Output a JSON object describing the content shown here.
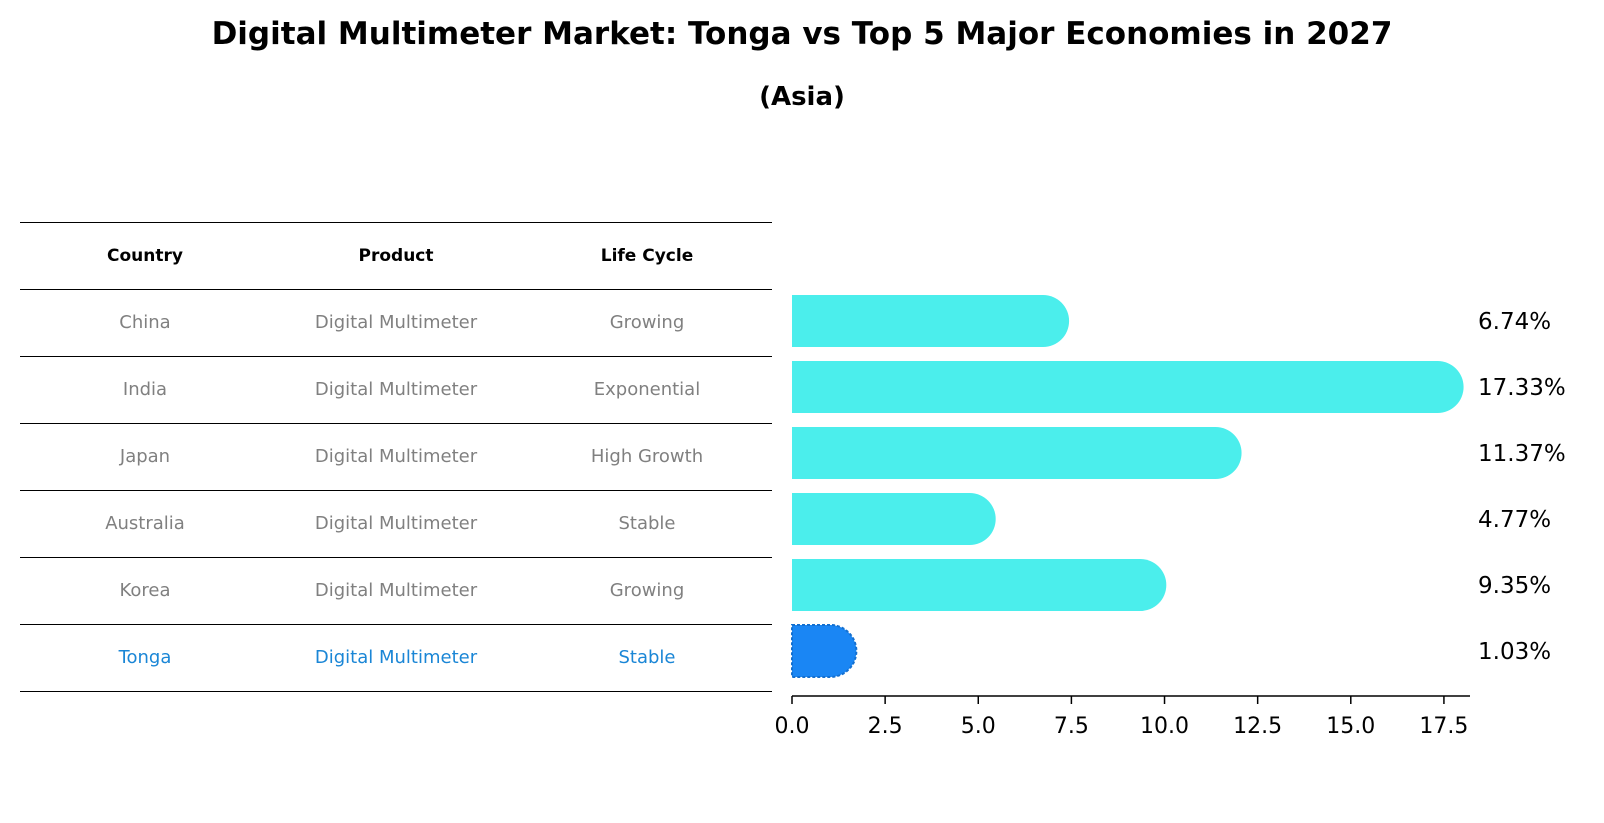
{
  "title": "Digital Multimeter Market: Tonga vs Top 5 Major Economies in 2027",
  "subtitle": "(Asia)",
  "table": {
    "headers": [
      "Country",
      "Product",
      "Life Cycle"
    ],
    "rows": [
      {
        "country": "China",
        "product": "Digital Multimeter",
        "life_cycle": "Growing"
      },
      {
        "country": "India",
        "product": "Digital Multimeter",
        "life_cycle": "Exponential"
      },
      {
        "country": "Japan",
        "product": "Digital Multimeter",
        "life_cycle": "High Growth"
      },
      {
        "country": "Australia",
        "product": "Digital Multimeter",
        "life_cycle": "Stable"
      },
      {
        "country": "Korea",
        "product": "Digital Multimeter",
        "life_cycle": "Growing"
      },
      {
        "country": "Tonga",
        "product": "Digital Multimeter",
        "life_cycle": "Stable"
      }
    ]
  },
  "colors": {
    "bar": "#4beeec",
    "highlight": "#1a86f4",
    "highlight_text": "#1a86d6",
    "muted_text": "#808080"
  },
  "chart_data": {
    "type": "bar",
    "orientation": "horizontal",
    "categories": [
      "China",
      "India",
      "Japan",
      "Australia",
      "Korea",
      "Tonga"
    ],
    "values": [
      6.74,
      17.33,
      11.37,
      4.77,
      9.35,
      1.03
    ],
    "value_labels": [
      "6.74%",
      "17.33%",
      "11.37%",
      "4.77%",
      "9.35%",
      "1.03%"
    ],
    "highlight": "Tonga",
    "xlim": [
      0,
      18.2
    ],
    "xticks": [
      0.0,
      2.5,
      5.0,
      7.5,
      10.0,
      12.5,
      15.0,
      17.5
    ],
    "xtick_labels": [
      "0.0",
      "2.5",
      "5.0",
      "7.5",
      "10.0",
      "12.5",
      "15.0",
      "17.5"
    ],
    "xlabel": "",
    "ylabel": "",
    "grid": false
  }
}
